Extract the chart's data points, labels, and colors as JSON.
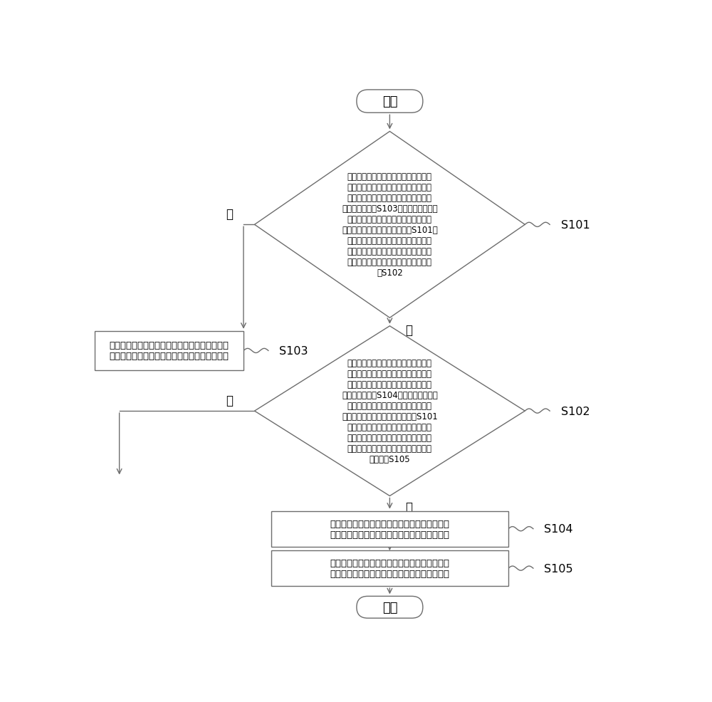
{
  "bg_color": "#ffffff",
  "line_color": "#6d6d6d",
  "text_color": "#000000",
  "start_text": "开始",
  "end_text": "结束",
  "s101_label": "S101",
  "s102_label": "S102",
  "s103_label": "S103",
  "s104_label": "S104",
  "s105_label": "S105",
  "yes_text": "是",
  "no_text": "否",
  "diamond1_text": "计算当前像素点对应的所述分量与第一\n对比像素点对应的所述分量的差值并存\n储，若所述差值对应的分量小于第一阈\n値，则执行步骤S103，其中，所述第一\n对比像素点位于所述当前像素点一侧方\n向的相邻位置，且再次执行步骤S101时\n将所述对比像素点对应的所述分量赋値\n为所述差值对应的所述分量；若所述差\n値对应的分量大于第一阈値，则执行步\n骤S102",
  "diamond2_text": "计算当前像素点对应的所述分量与第二\n对比像素点对应的所述分量的差值并存\n储，若所述差值对应的分量小于第二阈\n値，则执行步骤S104，其中，所述第二\n对比像素点位于所述当前像素点一侧方\n向的非相邻位置，且再次执行步骤S101\n时将所述第二对比像素点对应的所述分\n量赋値为所述差值对应的所述分量；若\n所述差值对应的分量大于第二阈値，则\n执行步骤S105",
  "box103_text": "降低所述差值对应的所述分量的比特位数后赋値\n为对应像素点对应所述分量的第一压缩表述方式",
  "box104_text": "降低所述差值对应的所述分量的比特位数后赋値\n为对应像素点对应所述分量的第二压缩表述方式",
  "box105_text": "降低所述差值对应的所述分量的比特位数后赋値\n为对应像素点对应所述分量的第三压缩表述方式",
  "font_size_diamond": 8.5,
  "font_size_box": 9.5,
  "font_size_label": 11.5,
  "font_size_start_end": 13.0,
  "font_size_yesno": 12.0
}
